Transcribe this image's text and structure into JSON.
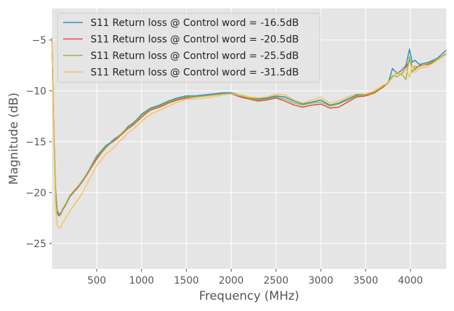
{
  "chart_data": {
    "type": "line",
    "title": "",
    "xlabel": "Frequency (MHz)",
    "ylabel": "Magnitude (dB)",
    "xlim": [
      0,
      4400
    ],
    "ylim": [
      -27.5,
      -1.9
    ],
    "xticks": [
      500,
      1000,
      1500,
      2000,
      2500,
      3000,
      3500,
      4000
    ],
    "yticks": [
      -25,
      -20,
      -15,
      -10,
      -5
    ],
    "xtick_labels": [
      "500",
      "1000",
      "1500",
      "2000",
      "2500",
      "3000",
      "3500",
      "4000"
    ],
    "ytick_labels": [
      "−25",
      "−20",
      "−15",
      "−10",
      "−5"
    ],
    "grid": true,
    "legend_position": "top-left",
    "series": [
      {
        "name": "S11 Return loss @ Control word = -16.5dB",
        "color": "#348ABD",
        "points": [
          [
            0,
            -4.8
          ],
          [
            20,
            -13.5
          ],
          [
            40,
            -19.5
          ],
          [
            60,
            -21.8
          ],
          [
            80,
            -22.1
          ],
          [
            100,
            -22.0
          ],
          [
            120,
            -21.6
          ],
          [
            150,
            -21.2
          ],
          [
            200,
            -20.3
          ],
          [
            250,
            -19.8
          ],
          [
            300,
            -19.3
          ],
          [
            350,
            -18.7
          ],
          [
            400,
            -18.0
          ],
          [
            450,
            -17.2
          ],
          [
            500,
            -16.4
          ],
          [
            550,
            -15.9
          ],
          [
            600,
            -15.4
          ],
          [
            650,
            -15.1
          ],
          [
            700,
            -14.7
          ],
          [
            750,
            -14.4
          ],
          [
            800,
            -14.0
          ],
          [
            850,
            -13.5
          ],
          [
            900,
            -13.2
          ],
          [
            950,
            -12.8
          ],
          [
            1000,
            -12.3
          ],
          [
            1050,
            -12.0
          ],
          [
            1100,
            -11.7
          ],
          [
            1200,
            -11.4
          ],
          [
            1300,
            -11.0
          ],
          [
            1400,
            -10.7
          ],
          [
            1500,
            -10.5
          ],
          [
            1600,
            -10.5
          ],
          [
            1700,
            -10.4
          ],
          [
            1800,
            -10.3
          ],
          [
            1900,
            -10.2
          ],
          [
            2000,
            -10.2
          ],
          [
            2100,
            -10.4
          ],
          [
            2200,
            -10.6
          ],
          [
            2300,
            -10.8
          ],
          [
            2400,
            -10.7
          ],
          [
            2500,
            -10.5
          ],
          [
            2600,
            -10.6
          ],
          [
            2700,
            -11.0
          ],
          [
            2800,
            -11.3
          ],
          [
            2900,
            -11.1
          ],
          [
            3000,
            -10.9
          ],
          [
            3100,
            -11.4
          ],
          [
            3200,
            -11.2
          ],
          [
            3300,
            -10.8
          ],
          [
            3400,
            -10.4
          ],
          [
            3500,
            -10.3
          ],
          [
            3600,
            -10.1
          ],
          [
            3700,
            -9.5
          ],
          [
            3750,
            -9.3
          ],
          [
            3800,
            -7.8
          ],
          [
            3850,
            -8.3
          ],
          [
            3900,
            -8.0
          ],
          [
            3950,
            -7.5
          ],
          [
            3990,
            -5.9
          ],
          [
            4020,
            -7.2
          ],
          [
            4050,
            -7.0
          ],
          [
            4100,
            -7.4
          ],
          [
            4200,
            -7.2
          ],
          [
            4300,
            -6.8
          ],
          [
            4400,
            -6.0
          ]
        ]
      },
      {
        "name": "S11 Return loss @ Control word = -20.5dB",
        "color": "#E24A33",
        "points": [
          [
            0,
            -4.8
          ],
          [
            20,
            -14.0
          ],
          [
            40,
            -20.0
          ],
          [
            60,
            -22.1
          ],
          [
            80,
            -22.3
          ],
          [
            100,
            -22.1
          ],
          [
            120,
            -21.7
          ],
          [
            150,
            -21.3
          ],
          [
            200,
            -20.4
          ],
          [
            250,
            -19.9
          ],
          [
            300,
            -19.4
          ],
          [
            350,
            -18.8
          ],
          [
            400,
            -18.1
          ],
          [
            450,
            -17.4
          ],
          [
            500,
            -16.7
          ],
          [
            550,
            -16.1
          ],
          [
            600,
            -15.6
          ],
          [
            650,
            -15.2
          ],
          [
            700,
            -14.9
          ],
          [
            750,
            -14.5
          ],
          [
            800,
            -14.1
          ],
          [
            850,
            -13.7
          ],
          [
            900,
            -13.4
          ],
          [
            950,
            -13.0
          ],
          [
            1000,
            -12.6
          ],
          [
            1050,
            -12.2
          ],
          [
            1100,
            -11.9
          ],
          [
            1200,
            -11.6
          ],
          [
            1300,
            -11.2
          ],
          [
            1400,
            -10.9
          ],
          [
            1500,
            -10.7
          ],
          [
            1600,
            -10.6
          ],
          [
            1700,
            -10.5
          ],
          [
            1800,
            -10.4
          ],
          [
            1900,
            -10.3
          ],
          [
            2000,
            -10.3
          ],
          [
            2100,
            -10.6
          ],
          [
            2200,
            -10.8
          ],
          [
            2300,
            -11.0
          ],
          [
            2400,
            -10.9
          ],
          [
            2500,
            -10.7
          ],
          [
            2600,
            -11.0
          ],
          [
            2700,
            -11.4
          ],
          [
            2800,
            -11.6
          ],
          [
            2900,
            -11.4
          ],
          [
            3000,
            -11.3
          ],
          [
            3100,
            -11.7
          ],
          [
            3200,
            -11.6
          ],
          [
            3300,
            -11.1
          ],
          [
            3400,
            -10.6
          ],
          [
            3500,
            -10.5
          ],
          [
            3600,
            -10.2
          ],
          [
            3700,
            -9.6
          ],
          [
            3750,
            -9.2
          ],
          [
            3800,
            -8.6
          ],
          [
            3850,
            -8.2
          ],
          [
            3900,
            -8.4
          ],
          [
            3950,
            -7.7
          ],
          [
            3990,
            -7.0
          ],
          [
            4020,
            -7.5
          ],
          [
            4050,
            -7.9
          ],
          [
            4100,
            -7.5
          ],
          [
            4200,
            -7.4
          ],
          [
            4300,
            -7.0
          ],
          [
            4400,
            -6.4
          ]
        ]
      },
      {
        "name": "S11 Return loss @ Control word = -25.5dB",
        "color": "#8EBA42",
        "points": [
          [
            0,
            -4.8
          ],
          [
            20,
            -13.8
          ],
          [
            40,
            -19.8
          ],
          [
            60,
            -22.0
          ],
          [
            80,
            -22.2
          ],
          [
            100,
            -22.0
          ],
          [
            120,
            -21.6
          ],
          [
            150,
            -21.2
          ],
          [
            200,
            -20.3
          ],
          [
            250,
            -19.8
          ],
          [
            300,
            -19.3
          ],
          [
            350,
            -18.7
          ],
          [
            400,
            -18.0
          ],
          [
            450,
            -17.3
          ],
          [
            500,
            -16.5
          ],
          [
            550,
            -16.0
          ],
          [
            600,
            -15.5
          ],
          [
            650,
            -15.2
          ],
          [
            700,
            -14.8
          ],
          [
            750,
            -14.4
          ],
          [
            800,
            -14.0
          ],
          [
            850,
            -13.6
          ],
          [
            900,
            -13.3
          ],
          [
            950,
            -12.9
          ],
          [
            1000,
            -12.4
          ],
          [
            1050,
            -12.1
          ],
          [
            1100,
            -11.8
          ],
          [
            1200,
            -11.5
          ],
          [
            1300,
            -11.1
          ],
          [
            1400,
            -10.8
          ],
          [
            1500,
            -10.6
          ],
          [
            1600,
            -10.6
          ],
          [
            1700,
            -10.5
          ],
          [
            1800,
            -10.4
          ],
          [
            1900,
            -10.3
          ],
          [
            2000,
            -10.3
          ],
          [
            2100,
            -10.5
          ],
          [
            2200,
            -10.7
          ],
          [
            2300,
            -10.9
          ],
          [
            2400,
            -10.8
          ],
          [
            2500,
            -10.6
          ],
          [
            2600,
            -10.8
          ],
          [
            2700,
            -11.2
          ],
          [
            2800,
            -11.4
          ],
          [
            2900,
            -11.2
          ],
          [
            3000,
            -11.1
          ],
          [
            3100,
            -11.5
          ],
          [
            3200,
            -11.3
          ],
          [
            3300,
            -10.9
          ],
          [
            3400,
            -10.5
          ],
          [
            3500,
            -10.4
          ],
          [
            3600,
            -10.1
          ],
          [
            3700,
            -9.5
          ],
          [
            3750,
            -9.2
          ],
          [
            3800,
            -8.5
          ],
          [
            3850,
            -8.6
          ],
          [
            3900,
            -8.3
          ],
          [
            3950,
            -8.9
          ],
          [
            3990,
            -6.6
          ],
          [
            4020,
            -8.2
          ],
          [
            4050,
            -7.6
          ],
          [
            4100,
            -7.6
          ],
          [
            4200,
            -7.3
          ],
          [
            4300,
            -6.9
          ],
          [
            4400,
            -6.3
          ]
        ]
      },
      {
        "name": "S11 Return loss @ Control word = -31.5dB",
        "color": "#FBC15E",
        "points": [
          [
            0,
            -4.8
          ],
          [
            20,
            -15.0
          ],
          [
            40,
            -21.5
          ],
          [
            60,
            -23.3
          ],
          [
            80,
            -23.5
          ],
          [
            100,
            -23.4
          ],
          [
            120,
            -22.9
          ],
          [
            150,
            -22.6
          ],
          [
            200,
            -21.8
          ],
          [
            250,
            -21.2
          ],
          [
            300,
            -20.6
          ],
          [
            350,
            -19.9
          ],
          [
            400,
            -19.0
          ],
          [
            450,
            -18.2
          ],
          [
            500,
            -17.3
          ],
          [
            550,
            -16.8
          ],
          [
            600,
            -16.2
          ],
          [
            650,
            -15.9
          ],
          [
            700,
            -15.5
          ],
          [
            750,
            -15.0
          ],
          [
            800,
            -14.6
          ],
          [
            850,
            -14.1
          ],
          [
            900,
            -13.8
          ],
          [
            950,
            -13.4
          ],
          [
            1000,
            -13.0
          ],
          [
            1050,
            -12.6
          ],
          [
            1100,
            -12.3
          ],
          [
            1200,
            -11.9
          ],
          [
            1300,
            -11.5
          ],
          [
            1400,
            -11.1
          ],
          [
            1500,
            -10.8
          ],
          [
            1600,
            -10.8
          ],
          [
            1700,
            -10.7
          ],
          [
            1800,
            -10.6
          ],
          [
            1900,
            -10.4
          ],
          [
            2000,
            -10.3
          ],
          [
            2100,
            -10.4
          ],
          [
            2200,
            -10.6
          ],
          [
            2300,
            -10.7
          ],
          [
            2400,
            -10.6
          ],
          [
            2500,
            -10.3
          ],
          [
            2600,
            -10.4
          ],
          [
            2700,
            -10.9
          ],
          [
            2800,
            -11.2
          ],
          [
            2900,
            -10.9
          ],
          [
            3000,
            -10.6
          ],
          [
            3100,
            -11.2
          ],
          [
            3200,
            -11.0
          ],
          [
            3300,
            -10.6
          ],
          [
            3400,
            -10.3
          ],
          [
            3500,
            -10.3
          ],
          [
            3600,
            -10.0
          ],
          [
            3700,
            -9.4
          ],
          [
            3750,
            -9.3
          ],
          [
            3800,
            -8.7
          ],
          [
            3850,
            -8.1
          ],
          [
            3900,
            -8.5
          ],
          [
            3950,
            -7.8
          ],
          [
            3990,
            -8.7
          ],
          [
            4020,
            -7.4
          ],
          [
            4050,
            -8.2
          ],
          [
            4100,
            -7.8
          ],
          [
            4200,
            -7.6
          ],
          [
            4300,
            -7.0
          ],
          [
            4400,
            -6.4
          ]
        ]
      }
    ]
  }
}
